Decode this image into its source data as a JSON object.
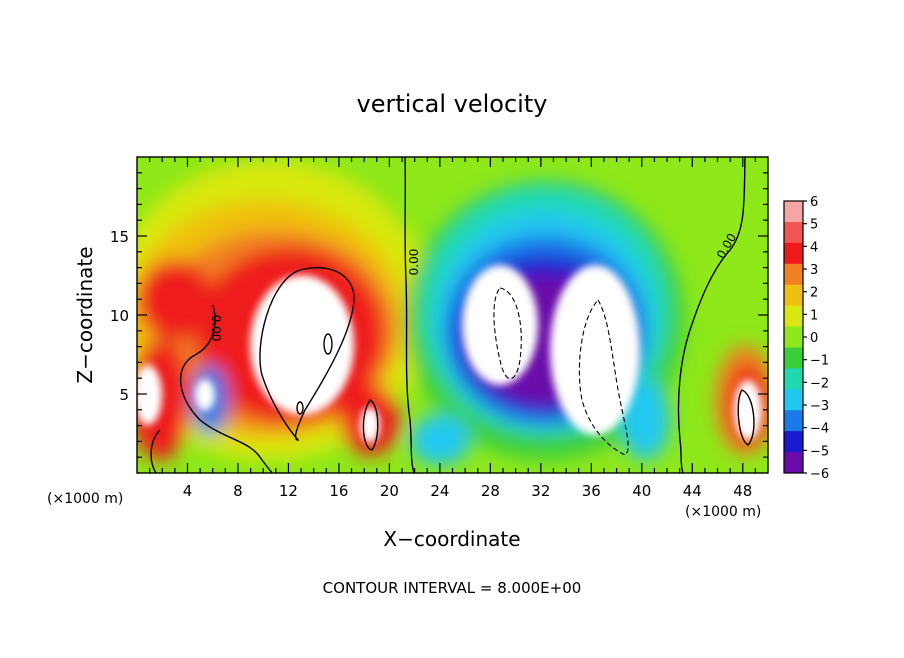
{
  "chart_data": {
    "type": "heatmap",
    "title": "vertical velocity",
    "xlabel": "X−coordinate",
    "ylabel": "Z−coordinate",
    "x_unit_left": "(×1000 m)",
    "x_unit_right": "(×1000 m)",
    "xlim": [
      0,
      50
    ],
    "ylim": [
      0,
      20
    ],
    "x_ticks": [
      4,
      8,
      12,
      16,
      20,
      24,
      28,
      32,
      36,
      40,
      44,
      48
    ],
    "x_tick_labels": [
      "4",
      "8",
      "12",
      "16",
      "20",
      "24",
      "28",
      "32",
      "36",
      "40",
      "44",
      "48"
    ],
    "y_ticks": [
      5,
      10,
      15
    ],
    "y_tick_labels": [
      "5",
      "10",
      "15"
    ],
    "colorbar": {
      "levels": [
        6,
        5,
        4,
        3,
        2,
        1,
        0,
        -1,
        -2,
        -3,
        -4,
        -5,
        -6
      ],
      "labels": [
        "6",
        "5",
        "4",
        "3",
        "2",
        "1",
        "0",
        "−1",
        "−2",
        "−3",
        "−4",
        "−5",
        "−6"
      ],
      "colors": [
        "#f4a6a6",
        "#f25555",
        "#ee1a1a",
        "#f08020",
        "#f0c010",
        "#d8e810",
        "#8ee81a",
        "#3ccf3c",
        "#20d8b0",
        "#20c8f0",
        "#1a78e8",
        "#1a1ad0",
        "#6a0aa8"
      ]
    },
    "contour_labels": [
      "0.00",
      "0.00",
      "0.00"
    ],
    "annotation": "CONTOUR INTERVAL = 8.000E+00",
    "colors": {
      "strong_up": "#ffffff",
      "up": "#ee1a1a",
      "zero": "#3ccf3c",
      "down": "#1a1ad0",
      "strong_down": "#ffffff"
    }
  }
}
